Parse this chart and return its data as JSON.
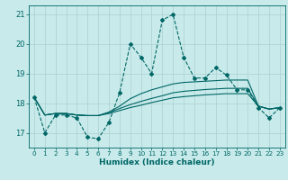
{
  "xlabel": "Humidex (Indice chaleur)",
  "background_color": "#c8eaea",
  "grid_color": "#b0d4d4",
  "line_color": "#006666",
  "xlim": [
    -0.5,
    23.5
  ],
  "ylim": [
    16.5,
    21.3
  ],
  "yticks": [
    17,
    18,
    19,
    20,
    21
  ],
  "xticks": [
    0,
    1,
    2,
    3,
    4,
    5,
    6,
    7,
    8,
    9,
    10,
    11,
    12,
    13,
    14,
    15,
    16,
    17,
    18,
    19,
    20,
    21,
    22,
    23
  ],
  "series": [
    [
      18.2,
      17.0,
      17.6,
      17.6,
      17.5,
      16.85,
      16.8,
      17.35,
      18.35,
      20.0,
      19.55,
      19.0,
      20.8,
      21.0,
      19.55,
      18.85,
      18.85,
      19.2,
      18.95,
      18.45,
      18.45,
      17.85,
      17.5,
      17.85
    ],
    [
      18.2,
      17.6,
      17.65,
      17.65,
      17.6,
      17.58,
      17.58,
      17.7,
      17.9,
      18.15,
      18.32,
      18.45,
      18.55,
      18.65,
      18.7,
      18.72,
      18.74,
      18.76,
      18.78,
      18.78,
      18.78,
      17.9,
      17.8,
      17.85
    ],
    [
      18.2,
      17.6,
      17.65,
      17.65,
      17.6,
      17.58,
      17.58,
      17.68,
      17.82,
      17.95,
      18.06,
      18.16,
      18.25,
      18.35,
      18.4,
      18.43,
      18.46,
      18.48,
      18.5,
      18.5,
      18.5,
      17.9,
      17.8,
      17.85
    ],
    [
      18.2,
      17.6,
      17.65,
      17.65,
      17.6,
      17.58,
      17.58,
      17.65,
      17.75,
      17.85,
      17.93,
      18.02,
      18.1,
      18.18,
      18.22,
      18.25,
      18.28,
      18.3,
      18.32,
      18.32,
      18.32,
      17.9,
      17.8,
      17.85
    ]
  ]
}
